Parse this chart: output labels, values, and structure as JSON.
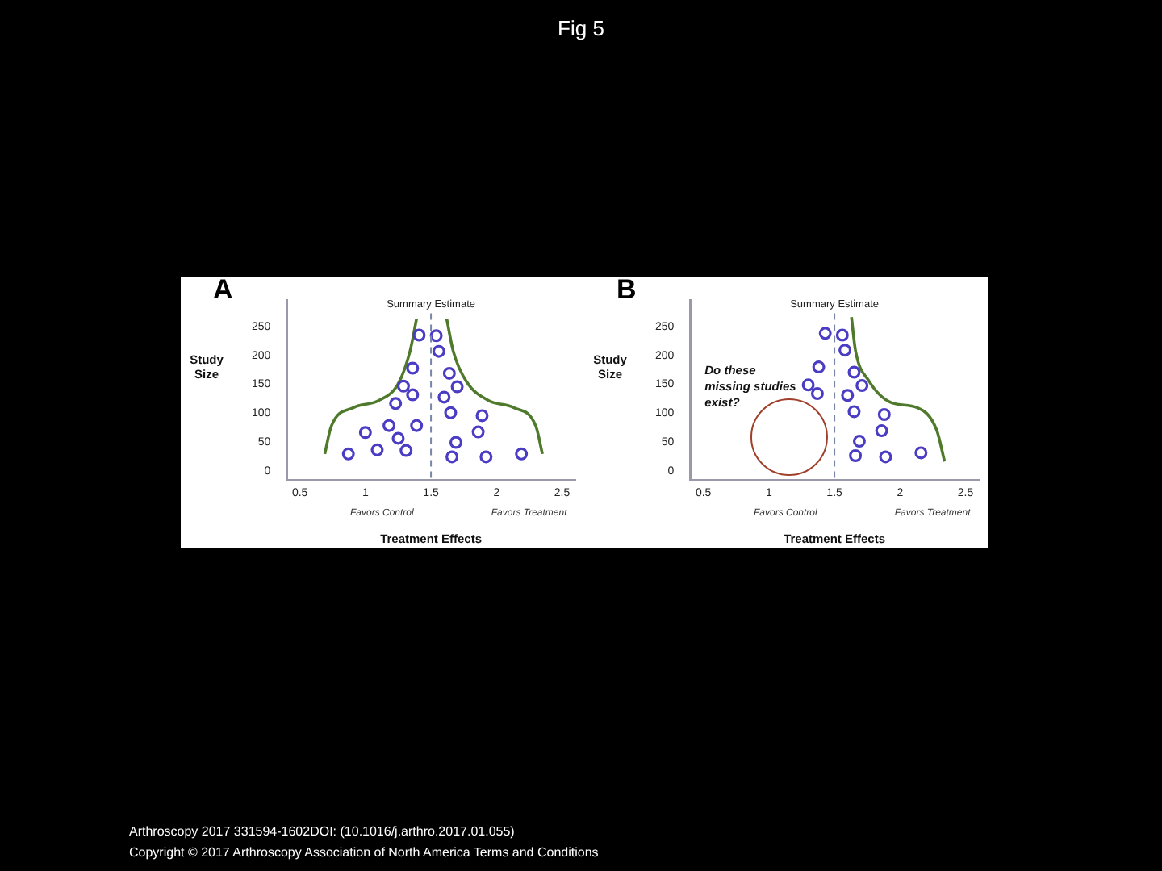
{
  "chart_data": [
    {
      "type": "scatter",
      "title": "A",
      "xlabel": "Treatment Effects",
      "ylabel": "Study Size",
      "xlim": [
        0.4,
        2.6
      ],
      "ylim": [
        -15,
        295
      ],
      "xticks": [
        0.5,
        1,
        1.5,
        2,
        2.5
      ],
      "yticks": [
        0,
        50,
        100,
        150,
        200,
        250
      ],
      "grid": false,
      "legend": false,
      "marker": "circle",
      "annotations": [
        "Favors Control",
        "Favors Treatment"
      ],
      "ref_lines": [
        {
          "axis": "x",
          "value": 1.5,
          "label": "Summary Estimate",
          "color": "#7a86a8",
          "line_style": "dashed"
        }
      ],
      "series": [
        {
          "type": "scatter",
          "color": "#4b3cc4",
          "x": [
            0.87,
            1.0,
            1.09,
            1.18,
            1.25,
            1.31,
            1.23,
            1.29,
            1.36,
            1.36,
            1.39,
            1.41,
            1.54,
            1.56,
            1.64,
            1.7,
            1.6,
            1.65,
            1.69,
            1.66,
            1.89,
            1.86,
            1.92,
            2.19
          ],
          "values": [
            30,
            67,
            37,
            79,
            57,
            36,
            117,
            147,
            132,
            178,
            79,
            235,
            234,
            207,
            169,
            146,
            128,
            101,
            50,
            25,
            96,
            68,
            25,
            30
          ]
        },
        {
          "type": "line",
          "color": "#4f7a2c",
          "marker": "none",
          "x": [
            0.69,
            0.74,
            0.91,
            1.1,
            1.25,
            1.34,
            1.39
          ],
          "values": [
            30,
            78,
            110,
            122,
            151,
            207,
            263
          ]
        },
        {
          "type": "line",
          "color": "#4f7a2c",
          "marker": "none",
          "x": [
            1.62,
            1.67,
            1.77,
            1.94,
            2.13,
            2.3,
            2.35
          ],
          "values": [
            263,
            207,
            155,
            122,
            110,
            78,
            30
          ]
        }
      ]
    },
    {
      "type": "scatter",
      "title": "B",
      "xlabel": "Treatment Effects",
      "ylabel": "Study Size",
      "xlim": [
        0.4,
        2.6
      ],
      "ylim": [
        -15,
        295
      ],
      "xticks": [
        0.5,
        1,
        1.5,
        2,
        2.5
      ],
      "yticks": [
        0,
        50,
        100,
        150,
        200,
        250
      ],
      "grid": false,
      "legend": false,
      "marker": "circle",
      "annotations": [
        "Do these missing studies exist?",
        "Favors Control",
        "Favors Treatment"
      ],
      "ref_lines": [
        {
          "axis": "x",
          "value": 1.5,
          "label": "Summary Estimate",
          "color": "#7a86a8",
          "line_style": "dashed"
        }
      ],
      "series": [
        {
          "type": "scatter",
          "color": "#4b3cc4",
          "x": [
            1.43,
            1.56,
            1.58,
            1.38,
            1.65,
            1.71,
            1.3,
            1.37,
            1.6,
            1.65,
            1.88,
            1.86,
            1.69,
            1.66,
            1.89,
            2.16
          ],
          "values": [
            238,
            235,
            209,
            180,
            171,
            148,
            149,
            134,
            131,
            103,
            98,
            70,
            52,
            27,
            25,
            32
          ]
        },
        {
          "type": "line",
          "color": "#4f7a2c",
          "marker": "none",
          "x": [
            1.63,
            1.66,
            1.76,
            1.94,
            2.13,
            2.28,
            2.34
          ],
          "values": [
            266,
            209,
            157,
            118,
            110,
            71,
            17
          ]
        }
      ]
    },
    {
      "type": "other",
      "title": "Fig 5",
      "annotations": [
        "Arthroscopy 2017 331594-1602DOI: (10.1016/j.arthro.2017.01.055)",
        "Copyright © 2017 Arthroscopy Association of North America Terms and Conditions"
      ]
    }
  ]
}
